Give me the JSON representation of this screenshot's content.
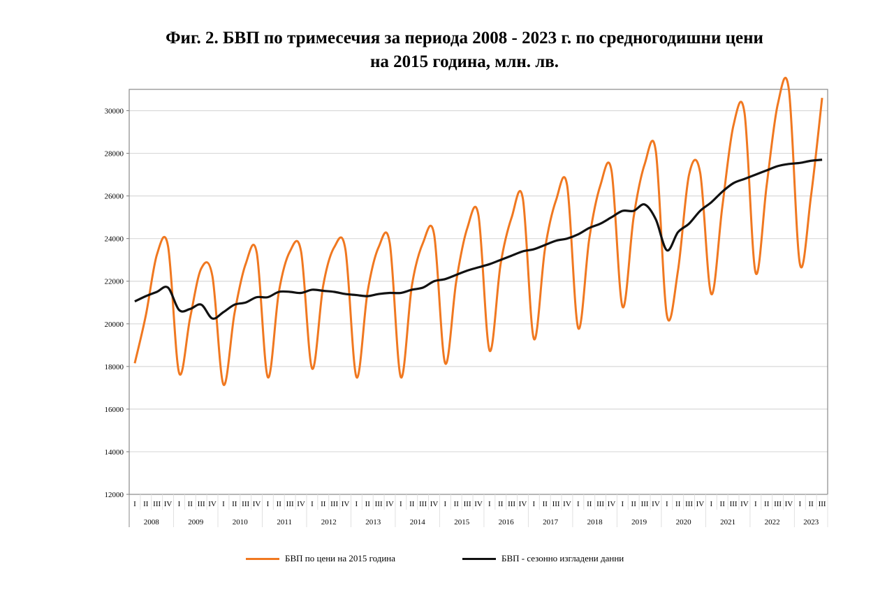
{
  "title_line1": "Фиг. 2. БВП по тримесечия за периода 2008 - 2023 г. по средногодишни цени",
  "title_line2": "на 2015 година, млн. лв.",
  "chart_data": {
    "type": "line",
    "title": "Фиг. 2. БВП по тримесечия за периода 2008 - 2023 г. по средногодишни цени на 2015 година, млн. лв.",
    "xlabel": "",
    "ylabel": "",
    "ylim": [
      12000,
      31000
    ],
    "yticks": [
      12000,
      14000,
      16000,
      18000,
      20000,
      22000,
      24000,
      26000,
      28000,
      30000
    ],
    "grid": true,
    "legend_placement": "bottom",
    "years": [
      "2008",
      "2009",
      "2010",
      "2011",
      "2012",
      "2013",
      "2014",
      "2015",
      "2016",
      "2017",
      "2018",
      "2019",
      "2020",
      "2021",
      "2022",
      "2023"
    ],
    "quarter_labels": [
      "I",
      "II",
      "III",
      "IV"
    ],
    "series": [
      {
        "name": "БВП  по цени на 2015 година",
        "color": "#f07820",
        "values": [
          18150,
          20400,
          23250,
          23650,
          17700,
          20300,
          22600,
          22250,
          17150,
          20500,
          22800,
          23350,
          17500,
          21500,
          23400,
          23400,
          17900,
          21800,
          23600,
          23500,
          17500,
          21500,
          23600,
          23800,
          17500,
          21800,
          23800,
          24200,
          18150,
          22000,
          24500,
          25100,
          18750,
          22800,
          25000,
          25900,
          19300,
          23500,
          25800,
          26500,
          19800,
          24000,
          26500,
          27200,
          20800,
          25000,
          27500,
          28100,
          20400,
          22500,
          27000,
          27100,
          21400,
          25500,
          29300,
          29900,
          22400,
          26500,
          30300,
          31000,
          22800,
          26000,
          30600
        ]
      },
      {
        "name": "БВП - сезонно изгладени данни",
        "color": "#111111",
        "values": [
          21050,
          21300,
          21500,
          21700,
          20650,
          20700,
          20900,
          20250,
          20550,
          20900,
          21000,
          21250,
          21250,
          21500,
          21500,
          21450,
          21600,
          21550,
          21500,
          21400,
          21350,
          21300,
          21400,
          21450,
          21450,
          21600,
          21700,
          22000,
          22100,
          22300,
          22500,
          22650,
          22800,
          23000,
          23200,
          23400,
          23500,
          23700,
          23900,
          24000,
          24200,
          24500,
          24700,
          25000,
          25300,
          25300,
          25600,
          24900,
          23450,
          24300,
          24700,
          25300,
          25700,
          26200,
          26600,
          26800,
          27000,
          27200,
          27400,
          27500,
          27550,
          27650,
          27700
        ]
      }
    ]
  }
}
